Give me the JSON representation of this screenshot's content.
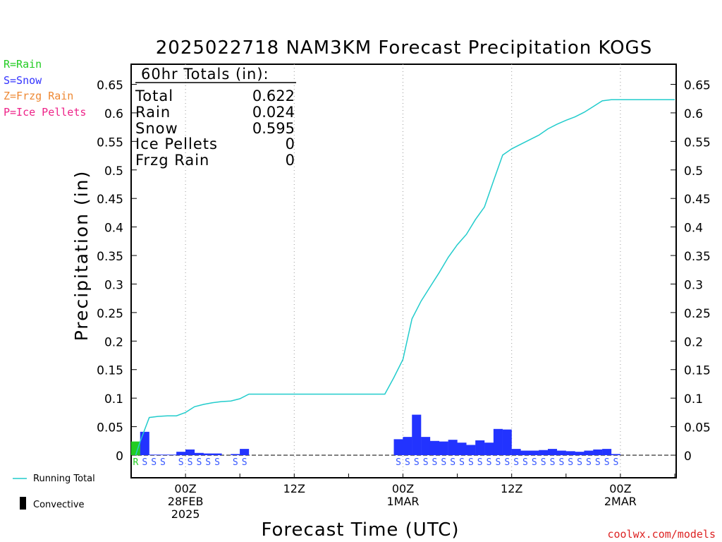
{
  "title": "2025022718 NAM3KM Forecast Precipitation KOGS",
  "footer": "coolwx.com/models",
  "legend": {
    "types": [
      {
        "label": "R=Rain",
        "color": "#22cc22"
      },
      {
        "label": "S=Snow",
        "color": "#3333ff"
      },
      {
        "label": "Z=Frzg Rain",
        "color": "#ee8833"
      },
      {
        "label": "P=Ice Pellets",
        "color": "#ee2288"
      }
    ],
    "running_total": "Running Total",
    "convective": "Convective"
  },
  "totals": {
    "header": "60hr Totals (in):",
    "rows": [
      {
        "label": "Total",
        "value": "0.622"
      },
      {
        "label": "Rain",
        "value": "0.024"
      },
      {
        "label": "Snow",
        "value": "0.595"
      },
      {
        "label": "Ice Pellets",
        "value": "0"
      },
      {
        "label": "Frzg Rain",
        "value": "0"
      }
    ]
  },
  "colors": {
    "rain": "#22cc22",
    "snow": "#2233ff",
    "line": "#22cccc",
    "snow_text": "#3355ff",
    "footer": "#dd2222"
  },
  "chart_data": {
    "type": "bar",
    "ylabel": "Precipitation (in)",
    "xlabel": "Forecast Time (UTC)",
    "ylim": [
      0,
      0.68
    ],
    "xlim": [
      0,
      60
    ],
    "y_ticks": [
      "0",
      "0.05",
      "0.1",
      "0.15",
      "0.2",
      "0.25",
      "0.3",
      "0.35",
      "0.4",
      "0.45",
      "0.5",
      "0.55",
      "0.6",
      "0.65"
    ],
    "x_ticks": [
      {
        "hour": 6,
        "lines": [
          "00Z",
          "28FEB",
          "2025"
        ]
      },
      {
        "hour": 18,
        "lines": [
          "12Z"
        ]
      },
      {
        "hour": 30,
        "lines": [
          "00Z",
          "1MAR"
        ]
      },
      {
        "hour": 42,
        "lines": [
          "12Z"
        ]
      },
      {
        "hour": 54,
        "lines": [
          "00Z",
          "2MAR"
        ]
      }
    ],
    "series": [
      {
        "name": "Rain",
        "hours": [
          1
        ],
        "values": [
          0.024
        ]
      },
      {
        "name": "Snow",
        "hours": [
          2,
          3,
          4,
          5,
          6,
          7,
          8,
          9,
          10,
          11,
          12,
          13,
          14,
          15,
          16,
          17,
          18,
          19,
          20,
          21,
          22,
          23,
          24,
          25,
          26,
          27,
          28,
          29,
          30,
          31,
          32,
          33,
          34,
          35,
          36,
          37,
          38,
          39,
          40,
          41,
          42,
          43,
          44,
          45,
          46,
          47,
          48,
          49,
          50,
          51,
          52,
          53,
          54,
          55,
          56,
          57,
          58,
          59,
          60
        ],
        "values": [
          0.041,
          0.001,
          0.001,
          0.001,
          0.006,
          0.01,
          0.004,
          0.003,
          0.003,
          0,
          0.002,
          0.011,
          0,
          0,
          0,
          0,
          0,
          0,
          0,
          0,
          0,
          0,
          0,
          0,
          0,
          0,
          0,
          0,
          0.028,
          0.032,
          0.071,
          0.032,
          0.025,
          0.024,
          0.027,
          0.022,
          0.018,
          0.026,
          0.022,
          0.046,
          0.045,
          0.011,
          0.008,
          0.008,
          0.009,
          0.011,
          0.008,
          0.007,
          0.006,
          0.008,
          0.01,
          0.011,
          0.002,
          0,
          0,
          0,
          0,
          0,
          0
        ]
      },
      {
        "name": "Running Total",
        "hours": [
          1,
          2,
          3,
          4,
          5,
          6,
          7,
          8,
          9,
          10,
          11,
          12,
          13,
          14,
          15,
          16,
          17,
          18,
          19,
          20,
          21,
          22,
          23,
          24,
          25,
          26,
          27,
          28,
          29,
          30,
          31,
          32,
          33,
          34,
          35,
          36,
          37,
          38,
          39,
          40,
          41,
          42,
          43,
          44,
          45,
          46,
          47,
          48,
          49,
          50,
          51,
          52,
          53,
          54,
          55,
          56,
          57,
          58,
          59,
          60
        ],
        "values": [
          0.024,
          0.066,
          0.068,
          0.069,
          0.069,
          0.075,
          0.085,
          0.089,
          0.092,
          0.094,
          0.095,
          0.099,
          0.107,
          0.107,
          0.107,
          0.107,
          0.107,
          0.107,
          0.107,
          0.107,
          0.107,
          0.107,
          0.107,
          0.107,
          0.107,
          0.107,
          0.107,
          0.107,
          0.136,
          0.168,
          0.239,
          0.27,
          0.295,
          0.32,
          0.347,
          0.369,
          0.387,
          0.413,
          0.435,
          0.481,
          0.526,
          0.537,
          0.545,
          0.553,
          0.561,
          0.572,
          0.58,
          0.587,
          0.593,
          0.601,
          0.611,
          0.621,
          0.623,
          0.623,
          0.623,
          0.623,
          0.623,
          0.623,
          0.623,
          0.623
        ]
      }
    ],
    "ptype_markers": [
      {
        "hour": 1,
        "code": "R"
      },
      {
        "hours": [
          2,
          3,
          4,
          6,
          7,
          8,
          9,
          10,
          12,
          13,
          30,
          31,
          32,
          33,
          34,
          35,
          36,
          37,
          38,
          39,
          40,
          41,
          42,
          43,
          44,
          45,
          46,
          47,
          48,
          49,
          50,
          51,
          52,
          53,
          54
        ],
        "code": "S"
      }
    ]
  }
}
